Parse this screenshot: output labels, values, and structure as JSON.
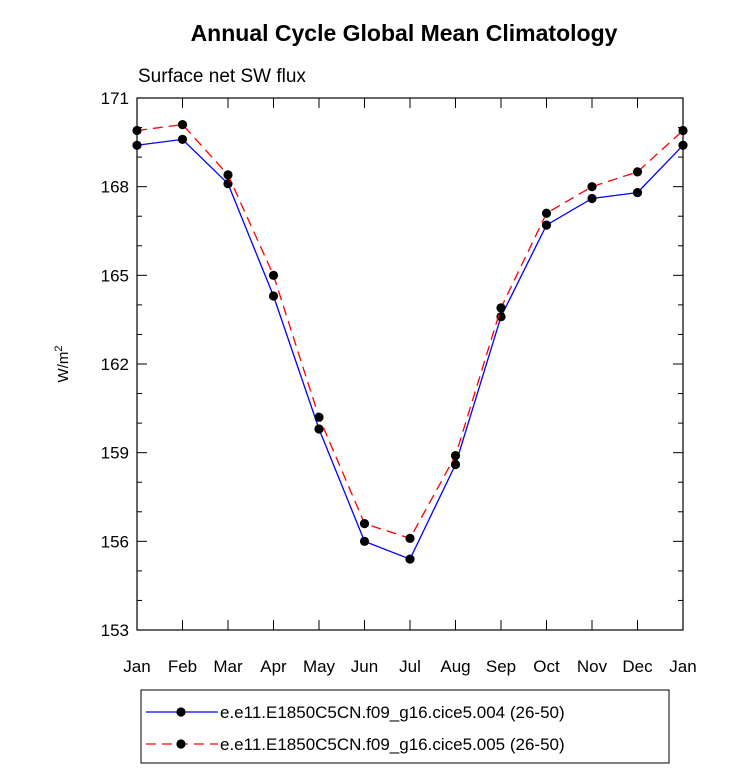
{
  "chart_data": {
    "type": "line",
    "title": "Annual Cycle Global Mean Climatology",
    "subtitle": "Surface net SW flux",
    "ylabel": "W/m",
    "ylabel_sup": "2",
    "xlabel": "",
    "categories": [
      "Jan",
      "Feb",
      "Mar",
      "Apr",
      "May",
      "Jun",
      "Jul",
      "Aug",
      "Sep",
      "Oct",
      "Nov",
      "Dec",
      "Jan"
    ],
    "ylim": [
      153,
      171
    ],
    "yticks": [
      153,
      156,
      159,
      162,
      165,
      168,
      171
    ],
    "series": [
      {
        "name": "e.e11.E1850C5CN.f09_g16.cice5.004 (26-50)",
        "color": "#0000ff",
        "dash": "solid",
        "marker": "circle",
        "values": [
          169.4,
          169.6,
          168.1,
          164.3,
          159.8,
          156.0,
          155.4,
          158.6,
          163.6,
          166.7,
          167.6,
          167.8,
          169.4
        ]
      },
      {
        "name": "e.e11.E1850C5CN.f09_g16.cice5.005 (26-50)",
        "color": "#ff0000",
        "dash": "dashed",
        "marker": "circle",
        "values": [
          169.9,
          170.1,
          168.4,
          165.0,
          160.2,
          156.6,
          156.1,
          158.9,
          163.9,
          167.1,
          168.0,
          168.5,
          169.9
        ]
      }
    ],
    "legend_position": "bottom"
  }
}
